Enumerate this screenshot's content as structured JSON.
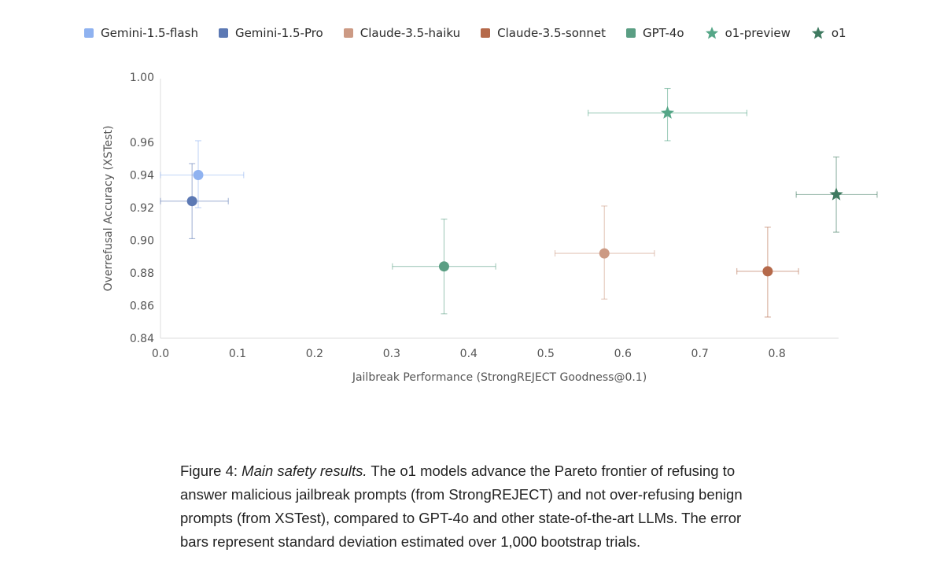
{
  "chart_data": {
    "type": "scatter",
    "xlabel": "Jailbreak Performance (StrongREJECT Goodness@0.1)",
    "ylabel": "Overrefusal Accuracy (XSTest)",
    "xlim": [
      0.0,
      0.88
    ],
    "ylim": [
      0.84,
      1.0
    ],
    "xticks": [
      "0.0",
      "0.1",
      "0.2",
      "0.3",
      "0.4",
      "0.5",
      "0.6",
      "0.7",
      "0.8"
    ],
    "yticks": [
      "0.84",
      "0.86",
      "0.88",
      "0.90",
      "0.92",
      "0.94",
      "0.96",
      "1.00"
    ],
    "legend_position": "top",
    "grid": false,
    "series": [
      {
        "name": "Gemini-1.5-flash",
        "marker": "circle",
        "color": "#8fb2f0",
        "x": 0.049,
        "y": 0.94,
        "x_err": [
          0.0,
          0.108
        ],
        "y_err": [
          0.92,
          0.961
        ]
      },
      {
        "name": "Gemini-1.5-Pro",
        "marker": "circle",
        "color": "#5c79b4",
        "x": 0.041,
        "y": 0.924,
        "x_err": [
          0.0,
          0.088
        ],
        "y_err": [
          0.901,
          0.947
        ]
      },
      {
        "name": "Claude-3.5-haiku",
        "marker": "circle",
        "color": "#cc9a84",
        "x": 0.576,
        "y": 0.892,
        "x_err": [
          0.512,
          0.641
        ],
        "y_err": [
          0.864,
          0.921
        ]
      },
      {
        "name": "Claude-3.5-sonnet",
        "marker": "circle",
        "color": "#b5694a",
        "x": 0.788,
        "y": 0.881,
        "x_err": [
          0.748,
          0.828
        ],
        "y_err": [
          0.853,
          0.908
        ]
      },
      {
        "name": "GPT-4o",
        "marker": "circle",
        "color": "#5a9e83",
        "x": 0.368,
        "y": 0.884,
        "x_err": [
          0.301,
          0.435
        ],
        "y_err": [
          0.855,
          0.913
        ]
      },
      {
        "name": "o1-preview",
        "marker": "star",
        "color": "#55a687",
        "x": 0.658,
        "y": 0.978,
        "x_err": [
          0.555,
          0.761
        ],
        "y_err": [
          0.961,
          0.993
        ]
      },
      {
        "name": "o1",
        "marker": "star",
        "color": "#3f7a60",
        "x": 0.877,
        "y": 0.928,
        "x_err": [
          0.825,
          0.93
        ],
        "y_err": [
          0.905,
          0.951
        ]
      }
    ]
  },
  "caption": {
    "label": "Figure 4:",
    "title": "Main safety results.",
    "body": "The o1 models advance the Pareto frontier of refusing to answer malicious jailbreak prompts (from StrongREJECT) and not over-refusing benign prompts (from XSTest), compared to GPT-4o and other state-of-the-art LLMs. The error bars represent standard deviation estimated over 1,000 bootstrap trials."
  }
}
